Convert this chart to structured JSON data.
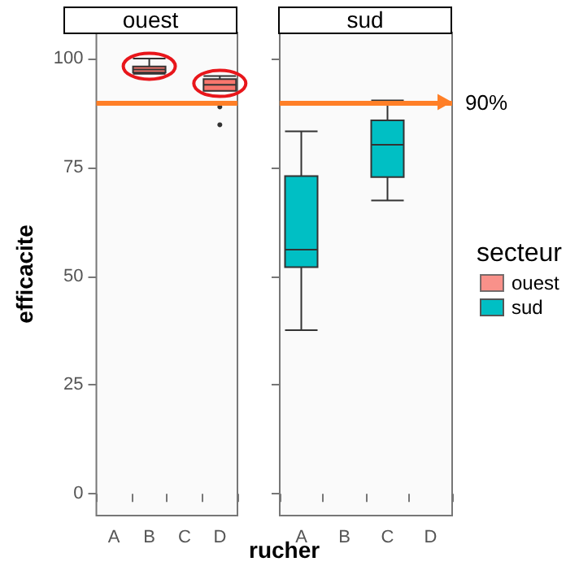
{
  "chart_data": [
    {
      "type": "box",
      "title": "ouest",
      "xlabel": "rucher",
      "ylabel": "efficacite",
      "categories": [
        "A",
        "B",
        "C",
        "D"
      ],
      "series": [
        {
          "color": "#f8766d",
          "boxes": [
            null,
            {
              "low": 96.5,
              "q1": 96.8,
              "median": 97.5,
              "q3": 98.2,
              "high": 100
            },
            null,
            {
              "low": 92.6,
              "q1": 92.6,
              "median": 94.0,
              "q3": 95.3,
              "high": 96,
              "outliers": [
                88.9,
                84.8
              ]
            }
          ]
        }
      ],
      "ylim": [
        -5,
        106
      ],
      "yticks": [
        0,
        25,
        50,
        75,
        100
      ],
      "grid": false,
      "legend": false,
      "ref_lines": [
        {
          "axis": "y",
          "value": 90,
          "color": "#ff7f27"
        }
      ]
    },
    {
      "type": "box",
      "title": "sud",
      "legend_title": "secteur",
      "categories": [
        "A",
        "B",
        "C",
        "D"
      ],
      "series": [
        {
          "name": "ouest",
          "color": "#f8766d",
          "boxes": [
            null,
            null,
            null,
            null
          ]
        },
        {
          "name": "sud",
          "color": "#00bfc4",
          "boxes": [
            {
              "low": 37.6,
              "q1": 52.1,
              "median": 56.1,
              "q3": 73.0,
              "high": 83.3
            },
            null,
            {
              "low": 67.4,
              "q1": 72.8,
              "median": 80.2,
              "q3": 85.8,
              "high": 90.4
            },
            null
          ]
        }
      ],
      "ylim": [
        -5,
        106
      ],
      "yticks": [
        0,
        25,
        50,
        75,
        100
      ],
      "grid": false,
      "legend": "right",
      "tick_labels": "x",
      "ref_lines": [
        {
          "axis": "y",
          "value": 90,
          "label": "90%",
          "color": "#ff7f27"
        }
      ]
    }
  ]
}
